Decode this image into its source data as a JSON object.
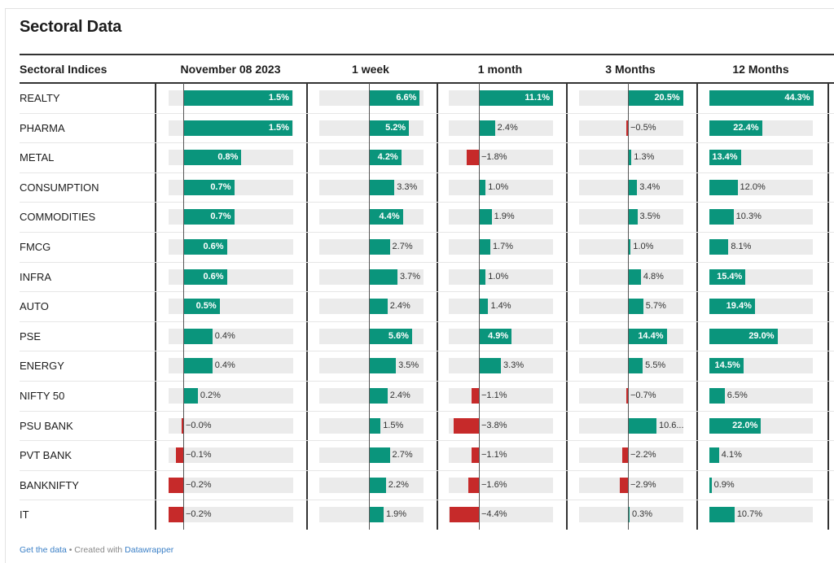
{
  "title": "Sectoral Data",
  "columns": {
    "label": "Sectoral Indices",
    "headers": [
      "November 08 2023",
      "1 week",
      "1 month",
      "3 Months",
      "12 Months"
    ]
  },
  "footer": {
    "get_data": "Get the data",
    "sep": " • Created with ",
    "tool": "Datawrapper"
  },
  "colors": {
    "positive": "#0a957c",
    "negative": "#c62a2a",
    "track": "#ebebeb"
  },
  "chart_data": {
    "type": "table",
    "rows": [
      {
        "name": "REALTY",
        "values": [
          1.5,
          6.6,
          11.1,
          20.5,
          44.3
        ],
        "labels": [
          "1.5%",
          "6.6%",
          "11.1%",
          "20.5%",
          "44.3%"
        ]
      },
      {
        "name": "PHARMA",
        "values": [
          1.5,
          5.2,
          2.4,
          -0.5,
          22.4
        ],
        "labels": [
          "1.5%",
          "5.2%",
          "2.4%",
          "−0.5%",
          "22.4%"
        ]
      },
      {
        "name": "METAL",
        "values": [
          0.8,
          4.2,
          -1.8,
          1.3,
          13.4
        ],
        "labels": [
          "0.8%",
          "4.2%",
          "−1.8%",
          "1.3%",
          "13.4%"
        ]
      },
      {
        "name": "CONSUMPTION",
        "values": [
          0.7,
          3.3,
          1.0,
          3.4,
          12.0
        ],
        "labels": [
          "0.7%",
          "3.3%",
          "1.0%",
          "3.4%",
          "12.0%"
        ]
      },
      {
        "name": "COMMODITIES",
        "values": [
          0.7,
          4.4,
          1.9,
          3.5,
          10.3
        ],
        "labels": [
          "0.7%",
          "4.4%",
          "1.9%",
          "3.5%",
          "10.3%"
        ]
      },
      {
        "name": "FMCG",
        "values": [
          0.6,
          2.7,
          1.7,
          1.0,
          8.1
        ],
        "labels": [
          "0.6%",
          "2.7%",
          "1.7%",
          "1.0%",
          "8.1%"
        ]
      },
      {
        "name": "INFRA",
        "values": [
          0.6,
          3.7,
          1.0,
          4.8,
          15.4
        ],
        "labels": [
          "0.6%",
          "3.7%",
          "1.0%",
          "4.8%",
          "15.4%"
        ]
      },
      {
        "name": "AUTO",
        "values": [
          0.5,
          2.4,
          1.4,
          5.7,
          19.4
        ],
        "labels": [
          "0.5%",
          "2.4%",
          "1.4%",
          "5.7%",
          "19.4%"
        ]
      },
      {
        "name": "PSE",
        "values": [
          0.4,
          5.6,
          4.9,
          14.4,
          29.0
        ],
        "labels": [
          "0.4%",
          "5.6%",
          "4.9%",
          "14.4%",
          "29.0%"
        ]
      },
      {
        "name": "ENERGY",
        "values": [
          0.4,
          3.5,
          3.3,
          5.5,
          14.5
        ],
        "labels": [
          "0.4%",
          "3.5%",
          "3.3%",
          "5.5%",
          "14.5%"
        ]
      },
      {
        "name": "NIFTY 50",
        "values": [
          0.2,
          2.4,
          -1.1,
          -0.7,
          6.5
        ],
        "labels": [
          "0.2%",
          "2.4%",
          "−1.1%",
          "−0.7%",
          "6.5%"
        ]
      },
      {
        "name": "PSU BANK",
        "values": [
          -0.0,
          1.5,
          -3.8,
          10.6,
          22.0
        ],
        "labels": [
          "−0.0%",
          "1.5%",
          "−3.8%",
          "10.6...",
          "22.0%"
        ]
      },
      {
        "name": "PVT BANK",
        "values": [
          -0.1,
          2.7,
          -1.1,
          -2.2,
          4.1
        ],
        "labels": [
          "−0.1%",
          "2.7%",
          "−1.1%",
          "−2.2%",
          "4.1%"
        ]
      },
      {
        "name": "BANKNIFTY",
        "values": [
          -0.2,
          2.2,
          -1.6,
          -2.9,
          0.9
        ],
        "labels": [
          "−0.2%",
          "2.2%",
          "−1.6%",
          "−2.9%",
          "0.9%"
        ]
      },
      {
        "name": "IT",
        "values": [
          -0.2,
          1.9,
          -4.4,
          0.3,
          10.7
        ],
        "labels": [
          "−0.2%",
          "1.9%",
          "−4.4%",
          "0.3%",
          "10.7%"
        ]
      }
    ]
  }
}
